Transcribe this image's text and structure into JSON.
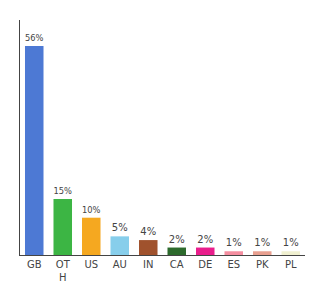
{
  "chart_data": {
    "type": "bar",
    "categories": [
      "GB",
      "OT\nH",
      "US",
      "AU",
      "IN",
      "CA",
      "DE",
      "ES",
      "PK",
      "PL"
    ],
    "values": [
      56,
      15,
      10,
      5,
      4,
      2,
      2,
      1,
      1,
      1
    ],
    "value_labels": [
      "56%",
      "15%",
      "10%",
      "5%",
      "4%",
      "2%",
      "2%",
      "1%",
      "1%",
      "1%"
    ],
    "colors": [
      "#4d79d4",
      "#3cb544",
      "#f5a820",
      "#87ceeb",
      "#a0522d",
      "#2d6a2d",
      "#e91e8c",
      "#f48ea0",
      "#e8a090",
      "#f0f0d0"
    ],
    "ylim": [
      0,
      63
    ],
    "data_labels": true,
    "tick_labels": "x",
    "grid": false
  }
}
